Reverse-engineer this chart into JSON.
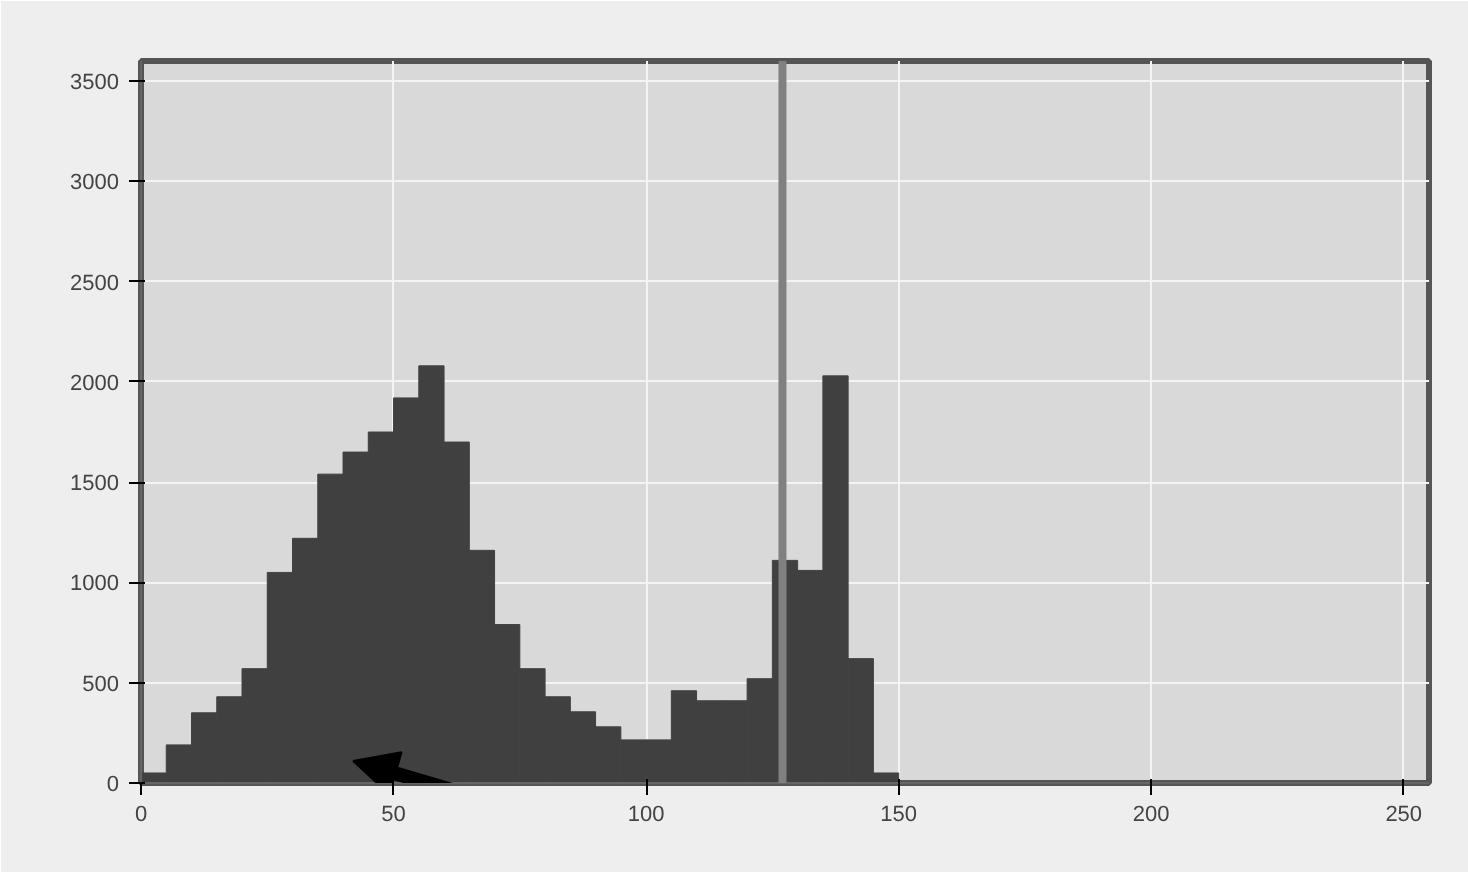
{
  "chart_data": {
    "type": "histogram",
    "bins": [
      0,
      5,
      10,
      15,
      20,
      25,
      30,
      35,
      40,
      45,
      50,
      55,
      60,
      65,
      70,
      75,
      80,
      85,
      90,
      95,
      100,
      105,
      110,
      115,
      120,
      125,
      130,
      135,
      140,
      145,
      150,
      155,
      160,
      165,
      170,
      175,
      180,
      185,
      190,
      195,
      200,
      205,
      210,
      215,
      220,
      225,
      230,
      235,
      240,
      245,
      250,
      255
    ],
    "values": [
      50,
      190,
      350,
      430,
      570,
      1050,
      1220,
      1540,
      1650,
      1750,
      1920,
      2080,
      1700,
      1160,
      790,
      570,
      430,
      355,
      280,
      215,
      215,
      460,
      410,
      410,
      520,
      1110,
      1060,
      2030,
      620,
      50,
      0,
      0,
      0,
      0,
      0,
      0,
      0,
      0,
      0,
      0,
      0,
      0,
      0,
      0,
      0,
      0,
      0,
      0,
      0,
      0,
      0
    ],
    "color": "#404040",
    "xlim": [
      0,
      255
    ],
    "ylim": [
      0,
      3600
    ],
    "xticks": [
      0,
      50,
      100,
      150,
      200,
      250
    ],
    "yticks": [
      0,
      500,
      1000,
      1500,
      2000,
      2500,
      3000,
      3500
    ],
    "grid": true,
    "ref_lines": [
      {
        "axis": "x",
        "value": 127,
        "color": "#808080"
      }
    ]
  }
}
